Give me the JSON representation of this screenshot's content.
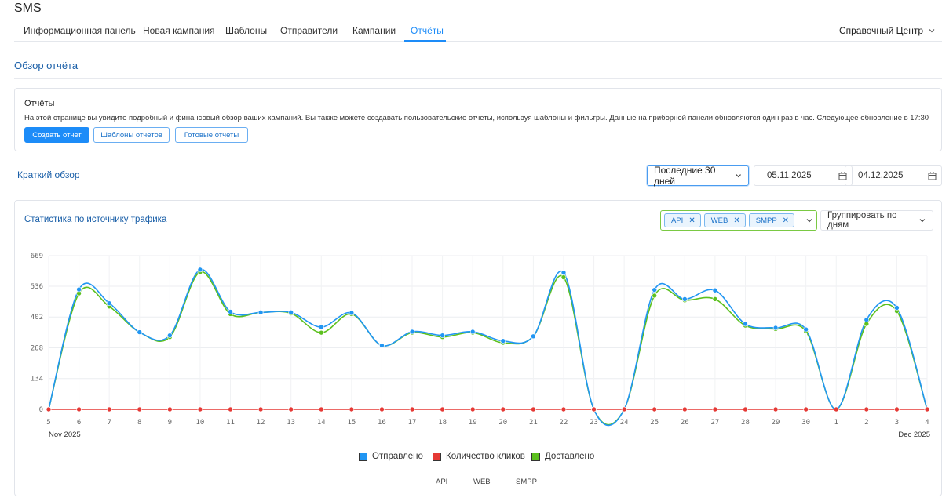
{
  "app_title": "SMS",
  "nav": {
    "tabs": [
      {
        "label": "Информационная панель"
      },
      {
        "label": "Новая кампания"
      },
      {
        "label": "Шаблоны"
      },
      {
        "label": "Отправители"
      },
      {
        "label": "Кампании"
      },
      {
        "label": "Отчёты"
      }
    ],
    "active_tab": "Отчёты",
    "help_center": "Справочный Центр"
  },
  "section_title": "Обзор отчёта",
  "reports_card": {
    "title": "Отчёты",
    "description": "На этой странице вы увидите подробный и финансовый обзор ваших кампаний. Вы также можете создавать пользовательские отчеты, используя шаблоны и фильтры. Данные на приборной панели обновляются один раз в час. Следующее обновление в 17:30",
    "buttons": {
      "create": "Создать отчет",
      "templates": "Шаблоны отчетов",
      "ready": "Готовые отчеты"
    }
  },
  "brief": {
    "title": "Краткий обзор",
    "period": "Последние 30 дней",
    "date_from": "05.11.2025",
    "date_to": "04.12.2025"
  },
  "stats": {
    "title": "Статистика по источнику трафика",
    "filter_chips": [
      "API",
      "WEB",
      "SMPP"
    ],
    "group_by": "Группировать по дням"
  },
  "colors": {
    "accent": "#1d8cf8",
    "sent": "#2196f3",
    "clicks": "#e53935",
    "delivered": "#5cc01e",
    "filter_border": "#7ac943"
  },
  "icons": {
    "calendar": "calendar-icon",
    "chevron": "chevron-down-icon",
    "close": "close-icon"
  },
  "chart_data": {
    "type": "line",
    "x": [
      "5",
      "6",
      "7",
      "8",
      "9",
      "10",
      "11",
      "12",
      "13",
      "14",
      "15",
      "16",
      "17",
      "18",
      "19",
      "20",
      "21",
      "22",
      "23",
      "24",
      "25",
      "26",
      "27",
      "28",
      "29",
      "30",
      "1",
      "2",
      "3",
      "4"
    ],
    "x_month_labels": {
      "start": "Nov 2025",
      "end": "Dec 2025"
    },
    "y_ticks": [
      "0",
      "134",
      "268",
      "402",
      "536",
      "669"
    ],
    "ylim": [
      0,
      669
    ],
    "grid": true,
    "legend_position": "bottom",
    "series": [
      {
        "name": "Отправлено",
        "color": "#2196f3",
        "values": [
          0,
          522,
          462,
          336,
          322,
          608,
          425,
          422,
          422,
          358,
          420,
          278,
          338,
          322,
          338,
          298,
          318,
          595,
          0,
          0,
          520,
          480,
          518,
          372,
          355,
          348,
          0,
          390,
          442,
          0
        ]
      },
      {
        "name": "Количество кликов",
        "color": "#e53935",
        "values": [
          0,
          0,
          0,
          0,
          0,
          0,
          0,
          0,
          0,
          0,
          0,
          0,
          0,
          0,
          0,
          0,
          0,
          0,
          0,
          0,
          0,
          0,
          0,
          0,
          0,
          0,
          0,
          0,
          0,
          0
        ]
      },
      {
        "name": "Доставлено",
        "color": "#5cc01e",
        "values": [
          0,
          505,
          448,
          336,
          315,
          598,
          415,
          422,
          418,
          334,
          415,
          278,
          334,
          315,
          334,
          290,
          318,
          575,
          0,
          0,
          495,
          475,
          480,
          365,
          350,
          340,
          0,
          372,
          428,
          0
        ]
      }
    ],
    "source_legend": [
      "API",
      "WEB",
      "SMPP"
    ]
  }
}
